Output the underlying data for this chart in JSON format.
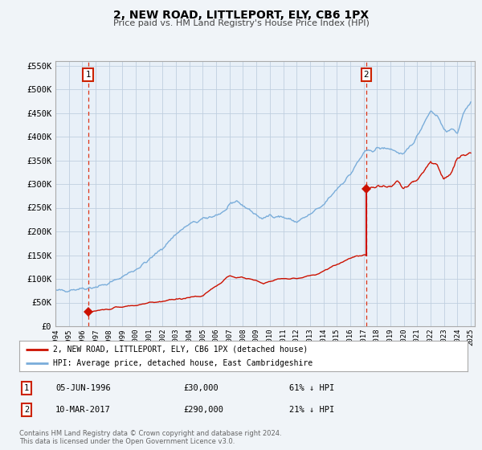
{
  "title": "2, NEW ROAD, LITTLEPORT, ELY, CB6 1PX",
  "subtitle": "Price paid vs. HM Land Registry's House Price Index (HPI)",
  "bg_color": "#f0f4f8",
  "plot_bg_color": "#e8f0f8",
  "grid_color": "#c0cfe0",
  "sale1_date": "05-JUN-1996",
  "sale1_price": 30000,
  "sale1_label": "61% ↓ HPI",
  "sale1_x": 1996.44,
  "sale2_date": "10-MAR-2017",
  "sale2_price": 290000,
  "sale2_label": "21% ↓ HPI",
  "sale2_x": 2017.19,
  "hpi_line_color": "#7aadda",
  "price_line_color": "#cc1100",
  "marker_color": "#cc1100",
  "vline_color": "#dd2200",
  "annotation_box_color": "#cc2200",
  "ylabel_values": [
    0,
    50000,
    100000,
    150000,
    200000,
    250000,
    300000,
    350000,
    400000,
    450000,
    500000,
    550000
  ],
  "ylim": [
    0,
    560000
  ],
  "xlim_start": 1994,
  "xlim_end": 2025.3,
  "legend_label1": "2, NEW ROAD, LITTLEPORT, ELY, CB6 1PX (detached house)",
  "legend_label2": "HPI: Average price, detached house, East Cambridgeshire",
  "footer1": "Contains HM Land Registry data © Crown copyright and database right 2024.",
  "footer2": "This data is licensed under the Open Government Licence v3.0.",
  "hpi_anchors_x": [
    1994.0,
    1995.0,
    1996.0,
    1997.0,
    1998.0,
    1999.0,
    2000.0,
    2001.0,
    2002.0,
    2003.0,
    2004.0,
    2005.0,
    2006.5,
    2007.5,
    2008.5,
    2009.5,
    2010.0,
    2011.0,
    2012.0,
    2013.0,
    2014.0,
    2015.0,
    2016.0,
    2017.0,
    2018.0,
    2019.0,
    2020.0,
    2021.0,
    2021.5,
    2022.0,
    2022.5,
    2023.0,
    2024.0,
    2024.5,
    2025.0
  ],
  "hpi_anchors_y": [
    74000,
    77000,
    80000,
    83000,
    90000,
    105000,
    120000,
    140000,
    165000,
    195000,
    215000,
    225000,
    240000,
    265000,
    245000,
    225000,
    235000,
    230000,
    220000,
    235000,
    255000,
    290000,
    320000,
    365000,
    375000,
    375000,
    360000,
    400000,
    430000,
    455000,
    445000,
    415000,
    410000,
    450000,
    475000
  ],
  "price_anchors_x": [
    1996.44,
    2005.0,
    2007.0,
    2008.5,
    2009.5,
    2010.5,
    2012.0,
    2013.5,
    2015.0,
    2016.5,
    2017.19
  ],
  "price_anchors_y": [
    30000,
    65000,
    105000,
    100000,
    90000,
    100000,
    100000,
    110000,
    130000,
    150000,
    150000
  ],
  "price_post_x": [
    2017.19,
    2018.0,
    2019.0,
    2019.5,
    2020.0,
    2020.5,
    2021.0,
    2021.5,
    2022.0,
    2022.5,
    2023.0,
    2023.5,
    2024.0,
    2024.5,
    2025.0
  ],
  "price_post_y": [
    290000,
    295000,
    295000,
    305000,
    290000,
    300000,
    310000,
    325000,
    350000,
    340000,
    310000,
    320000,
    355000,
    360000,
    365000
  ]
}
